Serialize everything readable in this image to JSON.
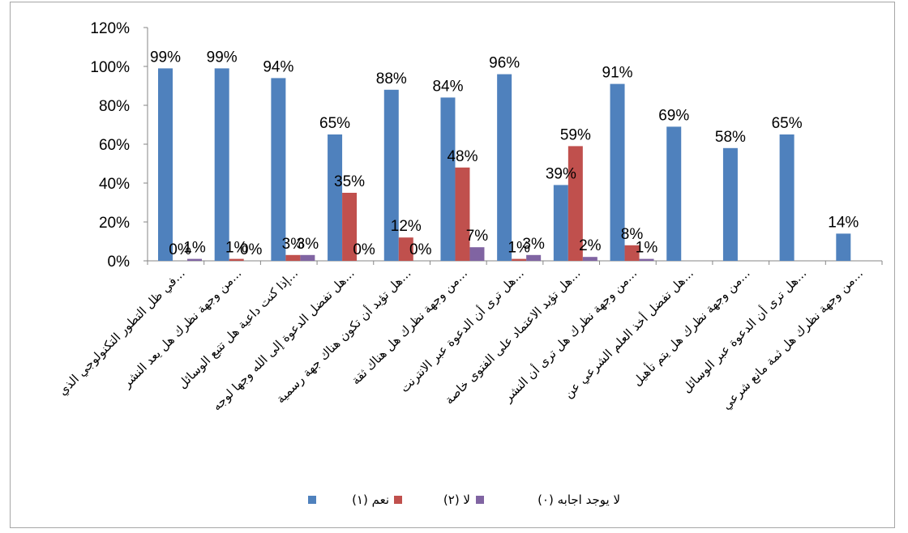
{
  "chart_data": {
    "type": "bar",
    "title": "",
    "xlabel": "",
    "ylabel": "",
    "ylim": [
      0,
      1.2
    ],
    "y_ticks": [
      "0%",
      "20%",
      "40%",
      "60%",
      "80%",
      "100%",
      "120%"
    ],
    "y_tick_values": [
      0,
      0.2,
      0.4,
      0.6,
      0.8,
      1.0,
      1.2
    ],
    "grid": false,
    "legend_position": "bottom",
    "categories": [
      "في ظل التطور التكنولوجي الذي...",
      "من وجهة نظرك هل يعد النشر...",
      "إذا كنت داعية هل تتبع الوسائل...",
      "هل تفضل الدعوة إلى الله وجها لوجه...",
      "هل تؤيد أن تكون هناك جهة رسمية...",
      "من وجهة نظرك هل هناك ثقة...",
      "هل ترى أن الدعوة عبر الانترنت...",
      "هل تؤيد الاعتماد على الفتوى خاصة...",
      "من وجهة نظرك هل ترى أن النشر...",
      "هل تفضل أخذ العلم الشرعي عن...",
      "من وجهة نظرك هل يتم تأهيل...",
      "هل ترى أن الدعوة عبر الوسائل...",
      "من وجهة نظرك هل ثمة مانع شرعي..."
    ],
    "series": [
      {
        "name": "نعم (١)",
        "color": "#4f81bd",
        "values": [
          0.99,
          0.99,
          0.94,
          0.65,
          0.88,
          0.84,
          0.96,
          0.39,
          0.91,
          0.69,
          0.58,
          0.65,
          0.14
        ],
        "labels": [
          "99%",
          "99%",
          "94%",
          "65%",
          "88%",
          "84%",
          "96%",
          "39%",
          "91%",
          "69%",
          "58%",
          "65%",
          "14%"
        ]
      },
      {
        "name": "لا (٢)",
        "color": "#c0504d",
        "values": [
          0.0,
          0.01,
          0.03,
          0.35,
          0.12,
          0.48,
          0.01,
          0.59,
          0.08,
          null,
          null,
          null,
          null
        ],
        "labels": [
          "0%",
          "1%",
          "3%",
          "35%",
          "12%",
          "48%",
          "1%",
          "59%",
          "8%",
          null,
          null,
          null,
          null
        ]
      },
      {
        "name": "لا يوجد اجابه (٠)",
        "color": "#8064a2",
        "values": [
          0.01,
          0.0,
          0.03,
          0.0,
          0.0,
          0.07,
          0.03,
          0.02,
          0.01,
          null,
          null,
          null,
          null
        ],
        "labels": [
          "1%",
          "0%",
          "3%",
          "0%",
          "0%",
          "7%",
          "3%",
          "2%",
          "1%",
          null,
          null,
          null,
          null
        ]
      }
    ]
  }
}
